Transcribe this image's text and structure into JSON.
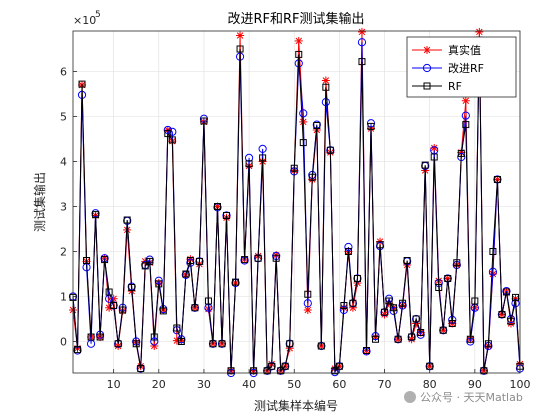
{
  "chart_data": {
    "type": "line",
    "title": "改进RF和RF测试集输出",
    "xlabel": "测试集样本编号",
    "ylabel": "测试集输出",
    "y_exponent_label": "×10",
    "y_exponent": "5",
    "xlim": [
      1,
      100
    ],
    "ylim": [
      -70000,
      690000
    ],
    "x_ticks": [
      10,
      20,
      30,
      40,
      50,
      60,
      70,
      80,
      90,
      100
    ],
    "y_ticks": [
      0,
      100000,
      200000,
      300000,
      400000,
      500000,
      600000
    ],
    "y_tick_labels": [
      "0",
      "1",
      "2",
      "3",
      "4",
      "5",
      "6"
    ],
    "grid": true,
    "legend_position": "top-right",
    "x": [
      1,
      2,
      3,
      4,
      5,
      6,
      7,
      8,
      9,
      10,
      11,
      12,
      13,
      14,
      15,
      16,
      17,
      18,
      19,
      20,
      21,
      22,
      23,
      24,
      25,
      26,
      27,
      28,
      29,
      30,
      31,
      32,
      33,
      34,
      35,
      36,
      37,
      38,
      39,
      40,
      41,
      42,
      43,
      44,
      45,
      46,
      47,
      48,
      49,
      50,
      51,
      52,
      53,
      54,
      55,
      56,
      57,
      58,
      59,
      60,
      61,
      62,
      63,
      64,
      65,
      66,
      67,
      68,
      69,
      70,
      71,
      72,
      73,
      74,
      75,
      76,
      77,
      78,
      79,
      80,
      81,
      82,
      83,
      84,
      85,
      86,
      87,
      88,
      89,
      90,
      91,
      92,
      93,
      94,
      95,
      96,
      97,
      98,
      99,
      100
    ],
    "series": [
      {
        "name": "真实值",
        "color": "#ff0000",
        "marker": "asterisk",
        "values": [
          70000,
          -15000,
          570000,
          178000,
          10000,
          280000,
          10000,
          185000,
          75000,
          95000,
          -10000,
          68000,
          248000,
          112000,
          -2000,
          -55000,
          178000,
          175000,
          -10000,
          130000,
          70000,
          470000,
          445000,
          2000,
          2000,
          148000,
          183000,
          75000,
          172000,
          488000,
          72000,
          -5000,
          300000,
          -5000,
          275000,
          -65000,
          130000,
          680000,
          183000,
          390000,
          -65000,
          190000,
          400000,
          -65000,
          -50000,
          192000,
          -65000,
          -55000,
          -15000,
          380000,
          668000,
          488000,
          70000,
          360000,
          470000,
          -10000,
          580000,
          420000,
          -60000,
          -55000,
          75000,
          200000,
          75000,
          130000,
          688000,
          -20000,
          473000,
          10000,
          222000,
          60000,
          85000,
          75000,
          5000,
          80000,
          170000,
          5000,
          40000,
          20000,
          380000,
          -55000,
          430000,
          135000,
          25000,
          140000,
          40000,
          170000,
          420000,
          535000,
          5000,
          75000,
          688000,
          -65000,
          -10000,
          150000,
          360000,
          60000,
          110000,
          40000,
          95000,
          -50000
        ]
      },
      {
        "name": "改进RF",
        "color": "#0000ff",
        "marker": "circle",
        "values": [
          100000,
          -20000,
          548000,
          165000,
          -5000,
          285000,
          15000,
          185000,
          95000,
          80000,
          -5000,
          75000,
          268000,
          122000,
          0,
          -60000,
          170000,
          182000,
          0,
          135000,
          72000,
          470000,
          466000,
          25000,
          5000,
          148000,
          175000,
          75000,
          178000,
          495000,
          75000,
          -5000,
          298000,
          -5000,
          280000,
          -70000,
          130000,
          633000,
          180000,
          408000,
          -70000,
          185000,
          428000,
          -65000,
          -55000,
          190000,
          -65000,
          -55000,
          -5000,
          378000,
          618000,
          507000,
          85000,
          370000,
          482000,
          -10000,
          532000,
          425000,
          -68000,
          -55000,
          70000,
          210000,
          85000,
          140000,
          665000,
          -22000,
          485000,
          12000,
          212000,
          65000,
          95000,
          68000,
          5000,
          80000,
          178000,
          10000,
          50000,
          15000,
          390000,
          -55000,
          425000,
          130000,
          25000,
          140000,
          48000,
          170000,
          410000,
          502000,
          0,
          75000,
          665000,
          -65000,
          -10000,
          155000,
          360000,
          60000,
          112000,
          50000,
          85000,
          -60000
        ]
      },
      {
        "name": "RF",
        "color": "#000000",
        "marker": "square",
        "values": [
          98000,
          -18000,
          572000,
          180000,
          10000,
          282000,
          10000,
          182000,
          110000,
          80000,
          -5000,
          70000,
          270000,
          120000,
          -5000,
          -60000,
          168000,
          178000,
          10000,
          128000,
          68000,
          462000,
          448000,
          30000,
          0,
          150000,
          180000,
          75000,
          178000,
          490000,
          90000,
          -5000,
          300000,
          -5000,
          280000,
          -65000,
          132000,
          650000,
          182000,
          395000,
          -65000,
          185000,
          408000,
          -65000,
          -55000,
          185000,
          -65000,
          -55000,
          -5000,
          385000,
          638000,
          442000,
          105000,
          365000,
          480000,
          -10000,
          565000,
          425000,
          -65000,
          -55000,
          80000,
          200000,
          85000,
          140000,
          622000,
          -20000,
          478000,
          5000,
          215000,
          65000,
          90000,
          75000,
          5000,
          85000,
          180000,
          10000,
          50000,
          20000,
          392000,
          -55000,
          410000,
          120000,
          25000,
          140000,
          40000,
          175000,
          418000,
          482000,
          5000,
          90000,
          670000,
          -65000,
          -5000,
          200000,
          360000,
          60000,
          110000,
          45000,
          98000,
          -55000
        ]
      }
    ]
  },
  "watermark": {
    "text": "公众号 · 天天Matlab"
  }
}
